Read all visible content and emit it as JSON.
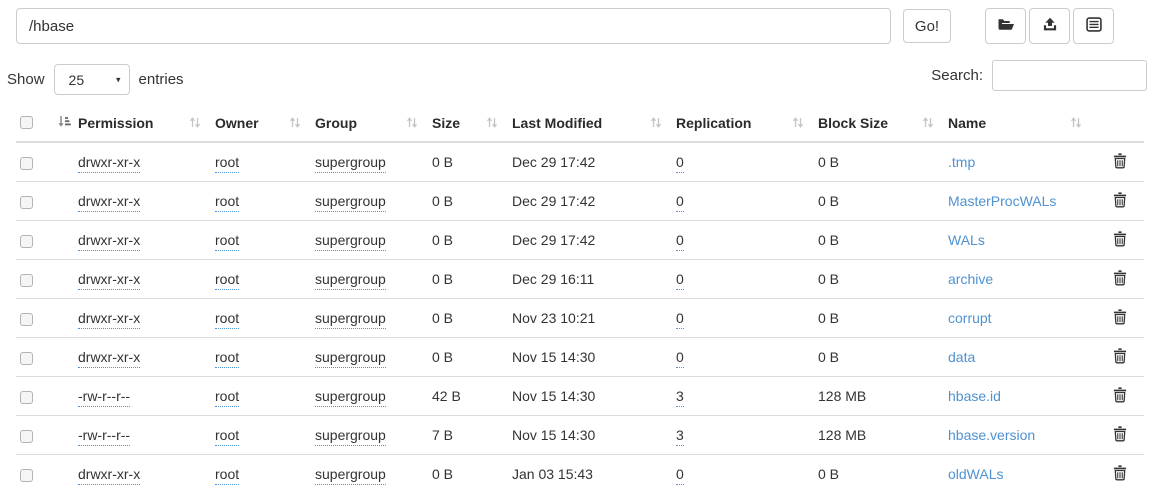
{
  "path_bar": {
    "path_value": "/hbase",
    "go_label": "Go!",
    "toolbar_icons": [
      "folder-open-icon",
      "upload-icon",
      "list-alt-icon"
    ]
  },
  "controls": {
    "show_label": "Show",
    "page_size": "25",
    "entries_label": "entries",
    "search_label": "Search:",
    "search_value": ""
  },
  "table": {
    "columns": [
      "Permission",
      "Owner",
      "Group",
      "Size",
      "Last Modified",
      "Replication",
      "Block Size",
      "Name"
    ],
    "sort_icons": {
      "active": "sort-amount-icon",
      "inactive": "sort-updown-icon"
    },
    "rows": [
      {
        "permission": "drwxr-xr-x",
        "owner": "root",
        "group": "supergroup",
        "size": "0 B",
        "modified": "Dec 29 17:42",
        "replication": "0",
        "block_size": "0 B",
        "name": ".tmp"
      },
      {
        "permission": "drwxr-xr-x",
        "owner": "root",
        "group": "supergroup",
        "size": "0 B",
        "modified": "Dec 29 17:42",
        "replication": "0",
        "block_size": "0 B",
        "name": "MasterProcWALs"
      },
      {
        "permission": "drwxr-xr-x",
        "owner": "root",
        "group": "supergroup",
        "size": "0 B",
        "modified": "Dec 29 17:42",
        "replication": "0",
        "block_size": "0 B",
        "name": "WALs"
      },
      {
        "permission": "drwxr-xr-x",
        "owner": "root",
        "group": "supergroup",
        "size": "0 B",
        "modified": "Dec 29 16:11",
        "replication": "0",
        "block_size": "0 B",
        "name": "archive"
      },
      {
        "permission": "drwxr-xr-x",
        "owner": "root",
        "group": "supergroup",
        "size": "0 B",
        "modified": "Nov 23 10:21",
        "replication": "0",
        "block_size": "0 B",
        "name": "corrupt"
      },
      {
        "permission": "drwxr-xr-x",
        "owner": "root",
        "group": "supergroup",
        "size": "0 B",
        "modified": "Nov 15 14:30",
        "replication": "0",
        "block_size": "0 B",
        "name": "data"
      },
      {
        "permission": "-rw-r--r--",
        "owner": "root",
        "group": "supergroup",
        "size": "42 B",
        "modified": "Nov 15 14:30",
        "replication": "3",
        "block_size": "128 MB",
        "name": "hbase.id"
      },
      {
        "permission": "-rw-r--r--",
        "owner": "root",
        "group": "supergroup",
        "size": "7 B",
        "modified": "Nov 15 14:30",
        "replication": "3",
        "block_size": "128 MB",
        "name": "hbase.version"
      },
      {
        "permission": "drwxr-xr-x",
        "owner": "root",
        "group": "supergroup",
        "size": "0 B",
        "modified": "Jan 03 15:43",
        "replication": "0",
        "block_size": "0 B",
        "name": "oldWALs"
      }
    ]
  },
  "colors": {
    "link": "#4f92d1",
    "row_border": "#dddddd",
    "text": "#333333",
    "control_border": "#cccccc",
    "sort_icon_inactive": "#c5c5c5"
  }
}
